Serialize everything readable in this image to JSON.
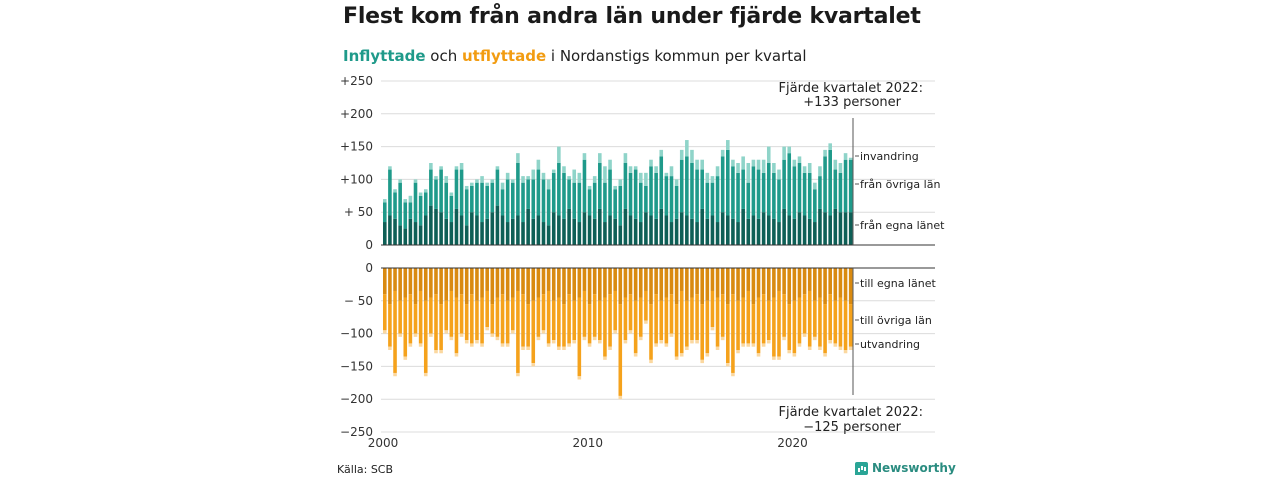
{
  "header": {
    "title": "Flest kom från andra län under fjärde kvartalet",
    "subtitle_in": "Inflyttade",
    "subtitle_mid": " och ",
    "subtitle_out": "utflyttade",
    "subtitle_rest": " i Nordanstigs kommun per kvartal"
  },
  "footer": {
    "source": "Källa: SCB",
    "logo": "Newsworthy"
  },
  "colors": {
    "in_own": "#0e5f56",
    "in_other": "#1f9a8a",
    "in_immigration": "#8fd4c9",
    "out_own": "#d98a10",
    "out_other": "#f5a21c",
    "out_emigration": "#fbd8a0"
  },
  "chart_data": {
    "type": "bar",
    "stacked": true,
    "x_axis": {
      "ticks": [
        2000,
        2010,
        2020
      ],
      "range": [
        2000,
        2023
      ]
    },
    "top_panel": {
      "ylim": [
        0,
        250
      ],
      "yticks": [
        0,
        50,
        100,
        150,
        200,
        250
      ],
      "ytick_labels": [
        "0",
        "+ 50",
        "+100",
        "+150",
        "+200",
        "+250"
      ],
      "series_labels": [
        "invandring",
        "från övriga län",
        "från egna länet"
      ],
      "annotation_line1": "Fjärde kvartalet 2022:",
      "annotation_line2": "+133 personer",
      "own_county": [
        35,
        45,
        40,
        30,
        25,
        40,
        35,
        30,
        45,
        60,
        55,
        50,
        40,
        35,
        55,
        45,
        30,
        50,
        45,
        35,
        40,
        50,
        60,
        45,
        35,
        40,
        45,
        35,
        55,
        40,
        45,
        35,
        30,
        50,
        45,
        40,
        55,
        40,
        35,
        50,
        45,
        40,
        55,
        35,
        45,
        40,
        30,
        55,
        45,
        40,
        35,
        50,
        45,
        40,
        55,
        45,
        35,
        40,
        50,
        45,
        40,
        35,
        55,
        40,
        45,
        35,
        50,
        45,
        40,
        35,
        55,
        40,
        45,
        40,
        50,
        45,
        40,
        35,
        55,
        45,
        40,
        50,
        45,
        40,
        35,
        55,
        50,
        45,
        55,
        50,
        50,
        50
      ],
      "other_county": [
        30,
        70,
        40,
        65,
        40,
        25,
        60,
        45,
        35,
        55,
        45,
        65,
        55,
        40,
        60,
        70,
        55,
        40,
        50,
        60,
        50,
        45,
        55,
        40,
        65,
        55,
        80,
        60,
        45,
        60,
        70,
        65,
        55,
        60,
        80,
        70,
        45,
        55,
        60,
        80,
        40,
        55,
        70,
        60,
        70,
        45,
        60,
        70,
        65,
        75,
        60,
        40,
        75,
        70,
        80,
        60,
        70,
        50,
        80,
        90,
        85,
        80,
        60,
        55,
        50,
        70,
        85,
        100,
        80,
        75,
        60,
        55,
        75,
        75,
        60,
        80,
        70,
        65,
        75,
        95,
        80,
        75,
        65,
        70,
        50,
        50,
        85,
        100,
        60,
        60,
        80,
        80
      ],
      "immigration": [
        5,
        5,
        5,
        5,
        5,
        10,
        5,
        5,
        5,
        10,
        5,
        5,
        10,
        5,
        5,
        10,
        5,
        5,
        5,
        10,
        5,
        5,
        5,
        10,
        10,
        5,
        15,
        10,
        5,
        15,
        15,
        10,
        15,
        5,
        25,
        10,
        5,
        20,
        15,
        10,
        5,
        10,
        15,
        25,
        15,
        5,
        10,
        15,
        10,
        5,
        15,
        20,
        10,
        10,
        10,
        5,
        15,
        10,
        15,
        25,
        20,
        15,
        15,
        15,
        10,
        15,
        10,
        15,
        10,
        15,
        20,
        30,
        10,
        15,
        20,
        25,
        15,
        15,
        20,
        10,
        10,
        10,
        10,
        15,
        10,
        15,
        10,
        10,
        15,
        15,
        10,
        3
      ]
    },
    "bottom_panel": {
      "ylim": [
        -250,
        0
      ],
      "yticks": [
        0,
        -50,
        -100,
        -150,
        -200,
        -250
      ],
      "ytick_labels": [
        "0",
        "− 50",
        "−100",
        "−150",
        "−200",
        "−250"
      ],
      "series_labels": [
        "till egna länet",
        "till övriga län",
        "utvandring"
      ],
      "annotation_line1": "Fjärde kvartalet 2022:",
      "annotation_line2": "−125 personer",
      "own_county": [
        40,
        55,
        35,
        50,
        45,
        40,
        55,
        35,
        50,
        45,
        40,
        55,
        50,
        35,
        45,
        40,
        55,
        40,
        50,
        45,
        35,
        55,
        45,
        40,
        50,
        45,
        35,
        40,
        55,
        50,
        45,
        40,
        35,
        50,
        45,
        55,
        40,
        50,
        45,
        35,
        55,
        40,
        50,
        45,
        40,
        35,
        55,
        45,
        40,
        50,
        45,
        35,
        55,
        40,
        50,
        45,
        40,
        55,
        35,
        50,
        45,
        40,
        55,
        50,
        35,
        45,
        40,
        55,
        40,
        50,
        45,
        35,
        55,
        45,
        40,
        50,
        45,
        35,
        40,
        55,
        50,
        45,
        40,
        35,
        50,
        45,
        55,
        40,
        50,
        45,
        50,
        55
      ],
      "other_county": [
        55,
        65,
        125,
        50,
        90,
        75,
        45,
        80,
        110,
        55,
        85,
        70,
        45,
        70,
        85,
        60,
        55,
        75,
        60,
        70,
        55,
        45,
        60,
        75,
        65,
        50,
        125,
        80,
        65,
        95,
        60,
        55,
        80,
        60,
        75,
        65,
        75,
        60,
        120,
        70,
        60,
        65,
        60,
        90,
        80,
        60,
        140,
        65,
        55,
        80,
        60,
        45,
        85,
        75,
        60,
        70,
        60,
        80,
        95,
        70,
        65,
        70,
        85,
        80,
        55,
        75,
        65,
        90,
        120,
        75,
        70,
        80,
        60,
        85,
        75,
        60,
        90,
        100,
        65,
        70,
        80,
        70,
        60,
        85,
        55,
        75,
        75,
        70,
        65,
        75,
        75,
        65
      ],
      "emigration": [
        5,
        5,
        5,
        5,
        5,
        5,
        5,
        5,
        5,
        5,
        5,
        5,
        5,
        5,
        5,
        5,
        5,
        5,
        5,
        5,
        5,
        5,
        5,
        5,
        5,
        5,
        5,
        5,
        5,
        5,
        5,
        5,
        5,
        5,
        5,
        5,
        5,
        5,
        5,
        5,
        5,
        5,
        5,
        5,
        5,
        5,
        5,
        5,
        5,
        5,
        5,
        5,
        5,
        5,
        5,
        5,
        5,
        5,
        5,
        5,
        5,
        5,
        5,
        5,
        5,
        5,
        5,
        5,
        5,
        5,
        5,
        5,
        5,
        5,
        5,
        5,
        5,
        5,
        5,
        5,
        5,
        5,
        5,
        5,
        5,
        5,
        5,
        5,
        5,
        5,
        5,
        5
      ]
    }
  }
}
